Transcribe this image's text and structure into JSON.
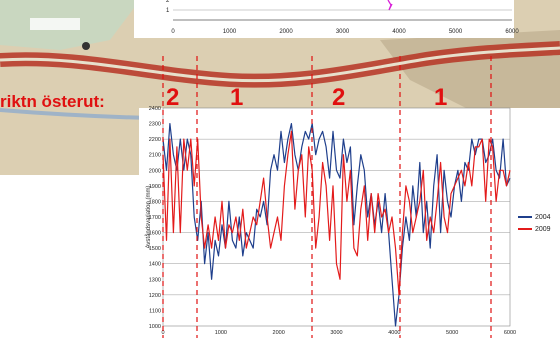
{
  "labels": {
    "direction": "riktn österut:",
    "sections": [
      "2",
      "1",
      "2",
      "1"
    ]
  },
  "top_chart": {
    "x_ticks": [
      "0",
      "1000",
      "2000",
      "3000",
      "4000",
      "5000",
      "6000"
    ],
    "y_ticks": [
      "1",
      "2"
    ]
  },
  "main_chart": {
    "y_axis_label": "Avståndsvariation (mm)",
    "x_ticks": [
      "0",
      "1000",
      "2000",
      "3000",
      "4000",
      "5000",
      "6000"
    ],
    "y_ticks": [
      "1000",
      "1100",
      "1200",
      "1300",
      "1400",
      "1500",
      "1600",
      "1700",
      "1800",
      "1900",
      "2000",
      "2100",
      "2200",
      "2300",
      "2400"
    ]
  },
  "colors": {
    "series_2004": "#1f3f8c",
    "series_2009": "#e31b1b",
    "marker_lines": "#e01010",
    "map_road": "#c23a2a",
    "map_land": "#d7c7a6"
  },
  "chart_data": {
    "type": "line",
    "title": "",
    "xlabel": "",
    "ylabel": "Avståndsvariation (mm)",
    "xlim": [
      0,
      6000
    ],
    "ylim": [
      1000,
      2400
    ],
    "grid": true,
    "legend_position": "right",
    "series": [
      {
        "name": "2004",
        "x": [
          0,
          60,
          120,
          180,
          240,
          300,
          360,
          420,
          480,
          540,
          600,
          660,
          720,
          780,
          840,
          900,
          960,
          1020,
          1080,
          1140,
          1200,
          1260,
          1320,
          1380,
          1440,
          1500,
          1560,
          1620,
          1680,
          1740,
          1800,
          1860,
          1920,
          1980,
          2040,
          2100,
          2160,
          2220,
          2280,
          2340,
          2400,
          2460,
          2520,
          2580,
          2640,
          2700,
          2760,
          2820,
          2880,
          2940,
          3000,
          3060,
          3120,
          3180,
          3240,
          3300,
          3360,
          3420,
          3480,
          3540,
          3600,
          3660,
          3720,
          3780,
          3840,
          3900,
          3960,
          4020,
          4080,
          4140,
          4200,
          4260,
          4320,
          4380,
          4440,
          4500,
          4560,
          4620,
          4680,
          4740,
          4800,
          4860,
          4920,
          4980,
          5040,
          5100,
          5160,
          5220,
          5280,
          5340,
          5400,
          5460,
          5520,
          5580,
          5640,
          5700,
          5760,
          5820,
          5880,
          5940,
          6000
        ],
        "y": [
          2200,
          2000,
          2300,
          2100,
          2000,
          2200,
          2000,
          2200,
          2100,
          1700,
          1550,
          1800,
          1400,
          1600,
          1300,
          1550,
          1450,
          1650,
          1500,
          1800,
          1550,
          1500,
          1700,
          1450,
          1600,
          1550,
          1500,
          1750,
          1700,
          1800,
          1650,
          2000,
          2100,
          2000,
          2250,
          2050,
          2200,
          2300,
          2100,
          2000,
          2150,
          2250,
          2200,
          2300,
          2100,
          2200,
          2250,
          2150,
          1950,
          2250,
          2000,
          1950,
          2200,
          2050,
          2150,
          1650,
          1900,
          2100,
          2000,
          1700,
          1850,
          1650,
          1800,
          1600,
          1850,
          1600,
          1300,
          1000,
          1200,
          1500,
          1700,
          1550,
          1900,
          1700,
          2050,
          1600,
          1800,
          1500,
          1900,
          2100,
          1600,
          2000,
          1800,
          1700,
          1900,
          2000,
          1800,
          2050,
          2000,
          2200,
          2100,
          2200,
          2200,
          2050,
          2100,
          2200,
          2000,
          1950,
          2200,
          1900,
          1950
        ]
      },
      {
        "name": "2009",
        "x": [
          0,
          60,
          120,
          180,
          240,
          300,
          360,
          420,
          480,
          540,
          600,
          660,
          720,
          780,
          840,
          900,
          960,
          1020,
          1080,
          1140,
          1200,
          1260,
          1320,
          1380,
          1440,
          1500,
          1560,
          1620,
          1680,
          1740,
          1800,
          1860,
          1920,
          1980,
          2040,
          2100,
          2160,
          2220,
          2280,
          2340,
          2400,
          2460,
          2520,
          2580,
          2640,
          2700,
          2760,
          2820,
          2880,
          2940,
          3000,
          3060,
          3120,
          3180,
          3240,
          3300,
          3360,
          3420,
          3480,
          3540,
          3600,
          3660,
          3720,
          3780,
          3840,
          3900,
          3960,
          4020,
          4080,
          4140,
          4200,
          4260,
          4320,
          4380,
          4440,
          4500,
          4560,
          4620,
          4680,
          4740,
          4800,
          4860,
          4920,
          4980,
          5040,
          5100,
          5160,
          5220,
          5280,
          5340,
          5400,
          5460,
          5520,
          5580,
          5640,
          5700,
          5760,
          5820,
          5880,
          5940,
          6000
        ],
        "y": [
          2100,
          1550,
          2200,
          1600,
          2150,
          1600,
          2200,
          2000,
          2200,
          1900,
          2200,
          1700,
          1500,
          1650,
          1500,
          1700,
          1550,
          1800,
          1500,
          1650,
          1600,
          1700,
          1550,
          1750,
          1500,
          1600,
          1700,
          1650,
          1800,
          1950,
          1700,
          1500,
          1600,
          1700,
          1550,
          1900,
          2100,
          2250,
          1750,
          2000,
          2100,
          1700,
          2150,
          2000,
          1500,
          1700,
          2050,
          1900,
          1550,
          1900,
          1400,
          1300,
          2100,
          1800,
          2000,
          1500,
          1450,
          1750,
          1900,
          1550,
          1850,
          1600,
          1850,
          1700,
          1750,
          1600,
          1700,
          1500,
          1200,
          1600,
          1900,
          1800,
          1600,
          1700,
          1800,
          2000,
          1550,
          1700,
          1600,
          1800,
          2050,
          1700,
          1600,
          1850,
          1900,
          1950,
          2000,
          1900,
          2050,
          1900,
          2150,
          2150,
          2200,
          1800,
          2200,
          2150,
          1800,
          2000,
          2000,
          1900,
          2000
        ]
      }
    ]
  }
}
